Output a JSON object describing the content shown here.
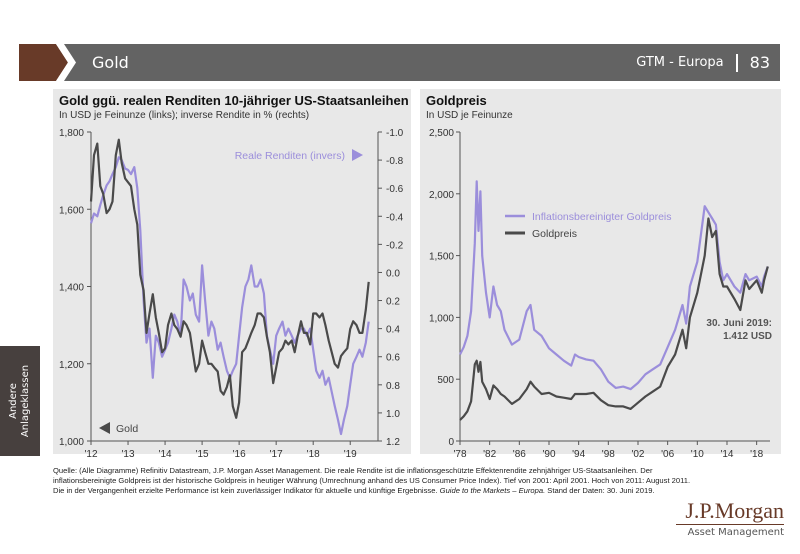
{
  "header": {
    "title": "Gold",
    "context": "GTM - Europa",
    "page_number": "83"
  },
  "side_tab": {
    "line1": "Andere",
    "line2": "Anlageklassen"
  },
  "colors": {
    "brand_brown": "#683a28",
    "header_gray": "#636363",
    "gold_line": "#4a4a4a",
    "purple_line": "#9b8edb",
    "panel_bg": "#e8e8e8"
  },
  "chart_data": [
    {
      "type": "line",
      "title": "Gold ggü. realen Renditen 10-jähriger US-Staatsanleihen",
      "subtitle": "In USD je Feinunze (links); inverse Rendite in % (rechts)",
      "x_ticks": [
        "'12",
        "'13",
        "'14",
        "'15",
        "'16",
        "'17",
        "'18",
        "'19"
      ],
      "x_range": [
        2012.0,
        2019.75
      ],
      "y_left": {
        "ticks": [
          "1,000",
          "1,200",
          "1,400",
          "1,600",
          "1,800"
        ],
        "range": [
          1000,
          1800
        ]
      },
      "y_right": {
        "ticks": [
          "-1.0",
          "-0.8",
          "-0.6",
          "-0.4",
          "-0.2",
          "0.0",
          "0.2",
          "0.4",
          "0.6",
          "0.8",
          "1.0",
          "1.2"
        ],
        "range": [
          -1.0,
          1.2
        ],
        "inverted": true
      },
      "grid": false,
      "annotations": [
        {
          "text": "Reale Renditen (invers)",
          "arrow": "right",
          "position": "top-right"
        },
        {
          "text": "Gold",
          "arrow": "left",
          "position": "bottom-left"
        }
      ],
      "series": [
        {
          "name": "Gold",
          "axis": "left",
          "x": [
            2012.0,
            2012.08,
            2012.17,
            2012.25,
            2012.33,
            2012.42,
            2012.5,
            2012.58,
            2012.67,
            2012.75,
            2012.83,
            2012.92,
            2013.0,
            2013.08,
            2013.17,
            2013.25,
            2013.33,
            2013.42,
            2013.5,
            2013.58,
            2013.67,
            2013.75,
            2013.83,
            2013.92,
            2014.0,
            2014.08,
            2014.17,
            2014.25,
            2014.33,
            2014.42,
            2014.5,
            2014.58,
            2014.67,
            2014.75,
            2014.83,
            2014.92,
            2015.0,
            2015.08,
            2015.17,
            2015.25,
            2015.33,
            2015.42,
            2015.5,
            2015.58,
            2015.67,
            2015.75,
            2015.83,
            2015.92,
            2016.0,
            2016.08,
            2016.17,
            2016.25,
            2016.33,
            2016.42,
            2016.5,
            2016.58,
            2016.67,
            2016.75,
            2016.83,
            2016.92,
            2017.0,
            2017.08,
            2017.17,
            2017.25,
            2017.33,
            2017.42,
            2017.5,
            2017.58,
            2017.67,
            2017.75,
            2017.83,
            2017.92,
            2018.0,
            2018.08,
            2018.17,
            2018.25,
            2018.33,
            2018.42,
            2018.5,
            2018.58,
            2018.67,
            2018.75,
            2018.83,
            2018.92,
            2019.0,
            2019.08,
            2019.17,
            2019.25,
            2019.33,
            2019.42,
            2019.5
          ],
          "values": [
            1620,
            1740,
            1770,
            1660,
            1640,
            1590,
            1600,
            1620,
            1740,
            1780,
            1720,
            1680,
            1670,
            1660,
            1600,
            1560,
            1430,
            1390,
            1280,
            1330,
            1380,
            1320,
            1280,
            1230,
            1240,
            1300,
            1330,
            1300,
            1290,
            1270,
            1310,
            1300,
            1280,
            1230,
            1180,
            1200,
            1260,
            1230,
            1200,
            1200,
            1190,
            1180,
            1130,
            1120,
            1140,
            1170,
            1090,
            1060,
            1100,
            1230,
            1240,
            1260,
            1280,
            1300,
            1330,
            1330,
            1320,
            1270,
            1230,
            1150,
            1190,
            1230,
            1240,
            1260,
            1250,
            1260,
            1230,
            1270,
            1310,
            1280,
            1280,
            1250,
            1330,
            1330,
            1320,
            1330,
            1300,
            1260,
            1230,
            1200,
            1190,
            1220,
            1230,
            1240,
            1290,
            1310,
            1300,
            1280,
            1280,
            1340,
            1412
          ]
        },
        {
          "name": "Reale Renditen (invers)",
          "axis": "right",
          "x": [
            2012.0,
            2012.08,
            2012.17,
            2012.25,
            2012.33,
            2012.42,
            2012.5,
            2012.58,
            2012.67,
            2012.75,
            2012.83,
            2012.92,
            2013.0,
            2013.08,
            2013.17,
            2013.25,
            2013.33,
            2013.42,
            2013.5,
            2013.58,
            2013.67,
            2013.75,
            2013.83,
            2013.92,
            2014.0,
            2014.08,
            2014.17,
            2014.25,
            2014.33,
            2014.42,
            2014.5,
            2014.58,
            2014.67,
            2014.75,
            2014.83,
            2014.92,
            2015.0,
            2015.08,
            2015.17,
            2015.25,
            2015.33,
            2015.42,
            2015.5,
            2015.58,
            2015.67,
            2015.75,
            2015.83,
            2015.92,
            2016.0,
            2016.08,
            2016.17,
            2016.25,
            2016.33,
            2016.42,
            2016.5,
            2016.58,
            2016.67,
            2016.75,
            2016.83,
            2016.92,
            2017.0,
            2017.08,
            2017.17,
            2017.25,
            2017.33,
            2017.42,
            2017.5,
            2017.58,
            2017.67,
            2017.75,
            2017.83,
            2017.92,
            2018.0,
            2018.08,
            2018.17,
            2018.25,
            2018.33,
            2018.42,
            2018.5,
            2018.58,
            2018.67,
            2018.75,
            2018.83,
            2018.92,
            2019.0,
            2019.08,
            2019.17,
            2019.25,
            2019.33,
            2019.42,
            2019.5
          ],
          "values": [
            -0.35,
            -0.42,
            -0.4,
            -0.48,
            -0.55,
            -0.62,
            -0.65,
            -0.7,
            -0.75,
            -0.82,
            -0.8,
            -0.74,
            -0.73,
            -0.7,
            -0.75,
            -0.6,
            -0.3,
            0.2,
            0.5,
            0.4,
            0.75,
            0.45,
            0.5,
            0.6,
            0.55,
            0.5,
            0.4,
            0.3,
            0.35,
            0.45,
            0.05,
            0.1,
            0.2,
            0.15,
            0.3,
            0.35,
            -0.05,
            0.2,
            0.45,
            0.35,
            0.4,
            0.55,
            0.5,
            0.6,
            0.7,
            0.75,
            0.7,
            0.65,
            0.45,
            0.25,
            0.1,
            0.05,
            -0.05,
            0.1,
            0.1,
            0.05,
            0.15,
            0.45,
            0.55,
            0.65,
            0.45,
            0.4,
            0.35,
            0.45,
            0.4,
            0.45,
            0.5,
            0.45,
            0.4,
            0.4,
            0.45,
            0.4,
            0.55,
            0.7,
            0.75,
            0.7,
            0.8,
            0.75,
            0.85,
            0.95,
            1.05,
            1.15,
            1.05,
            0.95,
            0.8,
            0.65,
            0.6,
            0.55,
            0.6,
            0.5,
            0.35
          ]
        }
      ]
    },
    {
      "type": "line",
      "title": "Goldpreis",
      "subtitle": "In USD je Feinunze",
      "x_ticks": [
        "'78",
        "'82",
        "'86",
        "'90",
        "'94",
        "'98",
        "'02",
        "'06",
        "'10",
        "'14",
        "'18"
      ],
      "x_range": [
        1978,
        2019.8
      ],
      "y": {
        "ticks": [
          "0",
          "500",
          "1,000",
          "1,500",
          "2,000",
          "2,500"
        ],
        "range": [
          0,
          2500
        ]
      },
      "grid": false,
      "legend": {
        "position": "top-left",
        "entries": [
          "Inflationsbereinigter Goldpreis",
          "Goldpreis"
        ]
      },
      "annotations": [
        {
          "line1": "30. Juni 2019:",
          "line2": "1.412 USD",
          "position": "right"
        }
      ],
      "series": [
        {
          "name": "Inflationsbereinigter Goldpreis",
          "x": [
            1978,
            1978.5,
            1979,
            1979.5,
            1980,
            1980.25,
            1980.5,
            1980.75,
            1981,
            1981.5,
            1982,
            1982.5,
            1983,
            1983.5,
            1984,
            1985,
            1986,
            1987,
            1987.5,
            1988,
            1989,
            1990,
            1991,
            1992,
            1993,
            1993.5,
            1994,
            1995,
            1996,
            1997,
            1998,
            1999,
            2000,
            2001,
            2002,
            2003,
            2004,
            2005,
            2006,
            2007,
            2008,
            2008.5,
            2009,
            2010,
            2011,
            2011.5,
            2012,
            2012.5,
            2013,
            2013.5,
            2014,
            2015,
            2015.8,
            2016.5,
            2017,
            2018,
            2018.7,
            2019,
            2019.5
          ],
          "values": [
            700,
            760,
            850,
            1050,
            1600,
            2100,
            1700,
            2020,
            1500,
            1200,
            1000,
            1250,
            1100,
            1050,
            900,
            780,
            820,
            1050,
            1100,
            900,
            850,
            750,
            700,
            650,
            610,
            700,
            680,
            660,
            650,
            580,
            480,
            430,
            440,
            420,
            470,
            540,
            580,
            620,
            760,
            900,
            1100,
            950,
            1250,
            1450,
            1900,
            1850,
            1800,
            1750,
            1450,
            1300,
            1350,
            1250,
            1200,
            1350,
            1300,
            1330,
            1250,
            1330,
            1412
          ]
        },
        {
          "name": "Goldpreis",
          "x": [
            1978,
            1978.5,
            1979,
            1979.5,
            1980,
            1980.25,
            1980.5,
            1980.75,
            1981,
            1981.5,
            1982,
            1982.5,
            1983,
            1983.5,
            1984,
            1985,
            1986,
            1987,
            1987.5,
            1988,
            1989,
            1990,
            1991,
            1992,
            1993,
            1993.5,
            1994,
            1995,
            1996,
            1997,
            1998,
            1999,
            2000,
            2001,
            2002,
            2003,
            2004,
            2005,
            2006,
            2007,
            2008,
            2008.5,
            2009,
            2010,
            2011,
            2011.5,
            2012,
            2012.5,
            2013,
            2013.5,
            2014,
            2015,
            2015.8,
            2016.5,
            2017,
            2018,
            2018.7,
            2019,
            2019.5
          ],
          "values": [
            170,
            200,
            240,
            320,
            620,
            650,
            560,
            640,
            480,
            420,
            340,
            450,
            420,
            380,
            360,
            300,
            340,
            420,
            480,
            440,
            380,
            390,
            360,
            350,
            340,
            380,
            380,
            380,
            390,
            330,
            290,
            280,
            280,
            260,
            310,
            360,
            400,
            440,
            600,
            700,
            900,
            750,
            1000,
            1200,
            1500,
            1800,
            1650,
            1700,
            1350,
            1250,
            1250,
            1150,
            1060,
            1300,
            1230,
            1300,
            1200,
            1300,
            1412
          ]
        }
      ]
    }
  ],
  "footnote": {
    "text_before_italic": "Quelle: (Alle Diagramme) Refinitiv Datastream, J.P. Morgan Asset Management. Die reale Rendite ist die inflationsgeschützte Effektenrendite zehnjähriger US-Staatsanleihen. Der inflationsbereinigte Goldpreis ist der historische Goldpreis in heutiger Währung (Umrechnung anhand des US Consumer Price Index). Tief von 2001: April 2001. Hoch von 2011: August 2011. Die in der Vergangenheit erzielte Performance ist kein zuverlässiger Indikator für aktuelle und künftige Ergebnisse. ",
    "italic": "Guide to the Markets – Europa.",
    "text_after_italic": " Stand der Daten: 30. Juni 2019."
  },
  "logo": {
    "main": "J.P.Morgan",
    "sub": "Asset Management"
  }
}
